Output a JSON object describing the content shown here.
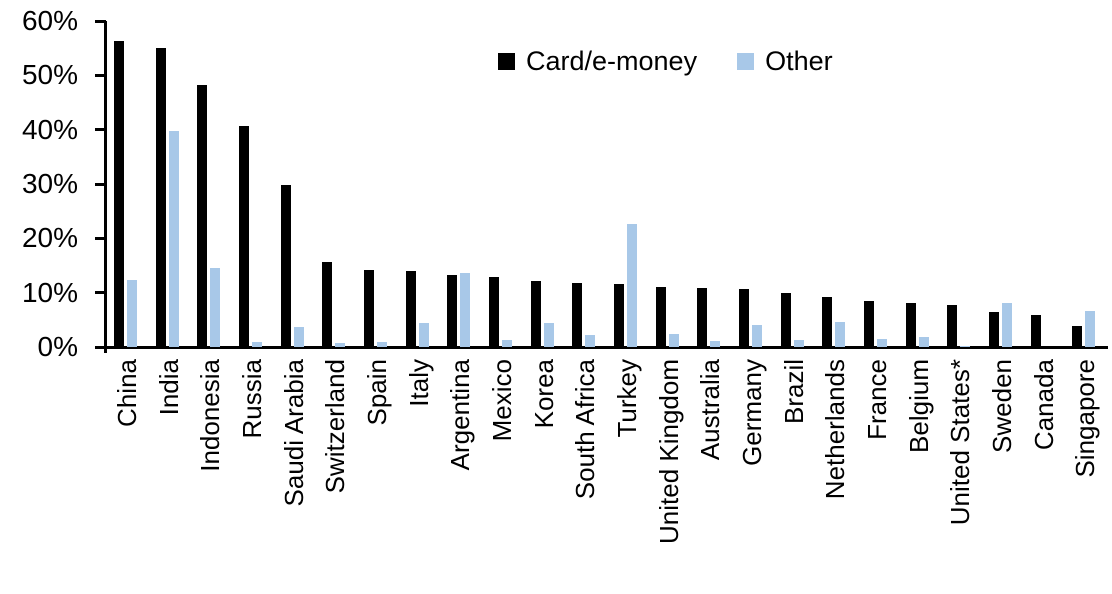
{
  "chart_data": {
    "type": "bar",
    "title": "",
    "xlabel": "",
    "ylabel": "",
    "ylim": [
      0,
      60
    ],
    "grid": false,
    "legend_position": "top-center",
    "y_ticks": [
      0,
      10,
      20,
      30,
      40,
      50,
      60
    ],
    "y_tick_labels": [
      "0%",
      "10%",
      "20%",
      "30%",
      "40%",
      "50%",
      "60%"
    ],
    "categories": [
      "China",
      "India",
      "Indonesia",
      "Russia",
      "Saudi Arabia",
      "Switzerland",
      "Spain",
      "Italy",
      "Argentina",
      "Mexico",
      "Korea",
      "South Africa",
      "Turkey",
      "United Kingdom",
      "Australia",
      "Germany",
      "Brazil",
      "Netherlands",
      "France",
      "Belgium",
      "United States*",
      "Sweden",
      "Canada",
      "Singapore"
    ],
    "series": [
      {
        "name": "Card/e-money",
        "color": "#000000",
        "values": [
          56.4,
          55.1,
          48.3,
          40.6,
          29.9,
          15.6,
          14.2,
          14.0,
          13.3,
          12.9,
          12.2,
          11.7,
          11.6,
          11.1,
          10.8,
          10.6,
          10.0,
          9.2,
          8.5,
          8.1,
          7.7,
          6.5,
          5.9,
          3.8
        ]
      },
      {
        "name": "Other",
        "color": "#A8C8E8",
        "values": [
          12.3,
          39.7,
          14.6,
          1.0,
          3.7,
          0.7,
          1.0,
          4.5,
          13.7,
          1.2,
          4.4,
          2.2,
          22.6,
          2.4,
          1.1,
          4.0,
          1.2,
          4.6,
          1.5,
          1.9,
          0.2,
          8.1,
          0.0,
          6.6
        ]
      }
    ]
  }
}
